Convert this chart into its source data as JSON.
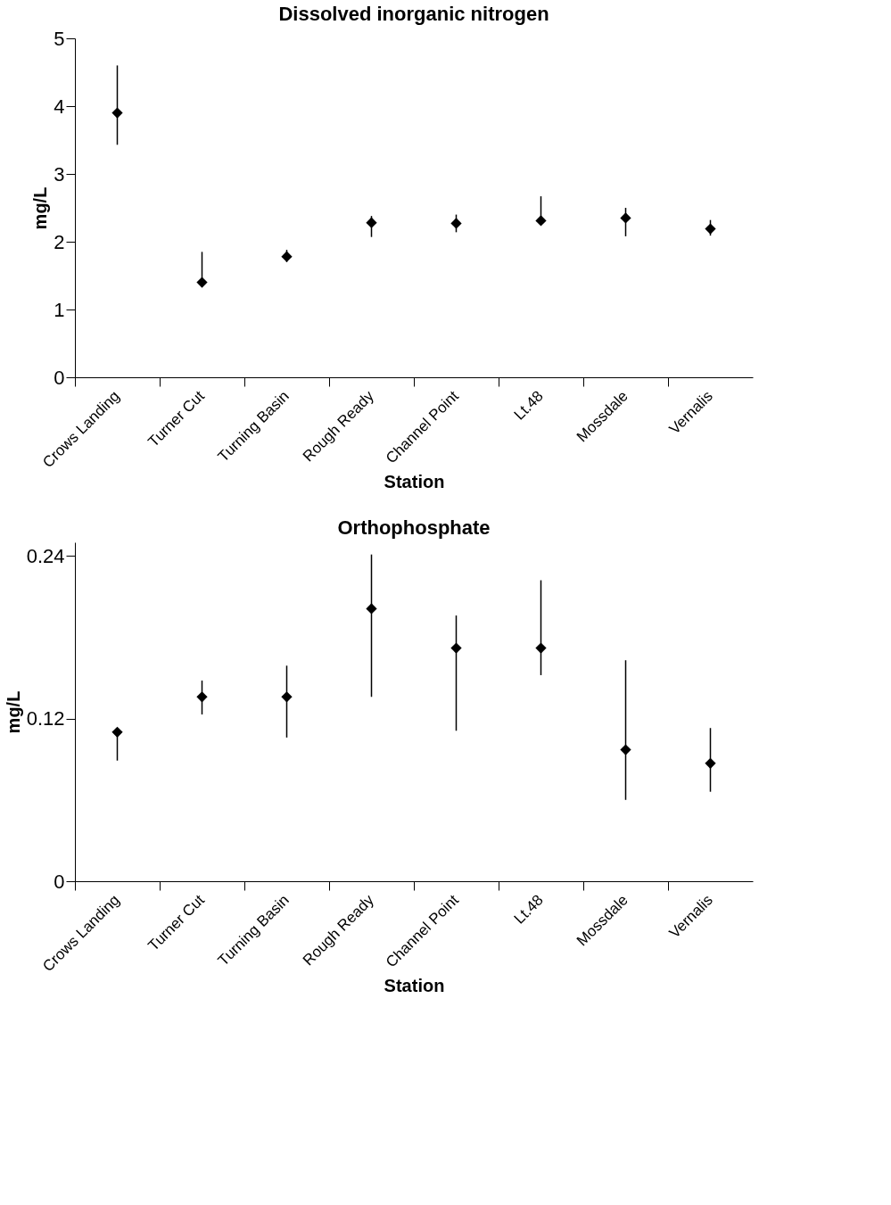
{
  "chart_data": [
    {
      "type": "scatter",
      "title": "Dissolved inorganic nitrogen",
      "xlabel": "Station",
      "ylabel": "mg/L",
      "categories": [
        "Crows Landing",
        "Turner Cut",
        "Turning Basin",
        "Rough Ready",
        "Channel Point",
        "Lt.48",
        "Mossdale",
        "Vernalis"
      ],
      "series": [
        {
          "color": "#000000",
          "values": [
            3.9,
            1.4,
            1.78,
            2.28,
            2.27,
            2.31,
            2.35,
            2.19
          ],
          "errors": [
            [
              3.43,
              4.6
            ],
            [
              1.4,
              1.85
            ],
            [
              1.7,
              1.88
            ],
            [
              2.07,
              2.38
            ],
            [
              2.14,
              2.4
            ],
            [
              2.31,
              2.67
            ],
            [
              2.08,
              2.5
            ],
            [
              2.09,
              2.32
            ]
          ]
        }
      ],
      "ylim": [
        0,
        5
      ],
      "yticks": [
        0,
        1,
        2,
        3,
        4,
        5
      ],
      "marker": "diamond",
      "grid": false
    },
    {
      "type": "scatter",
      "title": "Orthophosphate",
      "xlabel": "Station",
      "ylabel": "mg/L",
      "categories": [
        "Crows Landing",
        "Turner Cut",
        "Turning Basin",
        "Rough Ready",
        "Channel Point",
        "Lt.48",
        "Mossdale",
        "Vernalis"
      ],
      "series": [
        {
          "color": "#000000",
          "values": [
            0.11,
            0.136,
            0.136,
            0.201,
            0.172,
            0.172,
            0.097,
            0.087
          ],
          "errors": [
            [
              0.089,
              0.11
            ],
            [
              0.123,
              0.148
            ],
            [
              0.106,
              0.159
            ],
            [
              0.136,
              0.241
            ],
            [
              0.111,
              0.196
            ],
            [
              0.152,
              0.222
            ],
            [
              0.06,
              0.163
            ],
            [
              0.066,
              0.113
            ]
          ]
        }
      ],
      "ylim": [
        0,
        0.25
      ],
      "yticks": [
        0,
        0.12,
        0.24
      ],
      "marker": "diamond",
      "grid": false
    }
  ]
}
